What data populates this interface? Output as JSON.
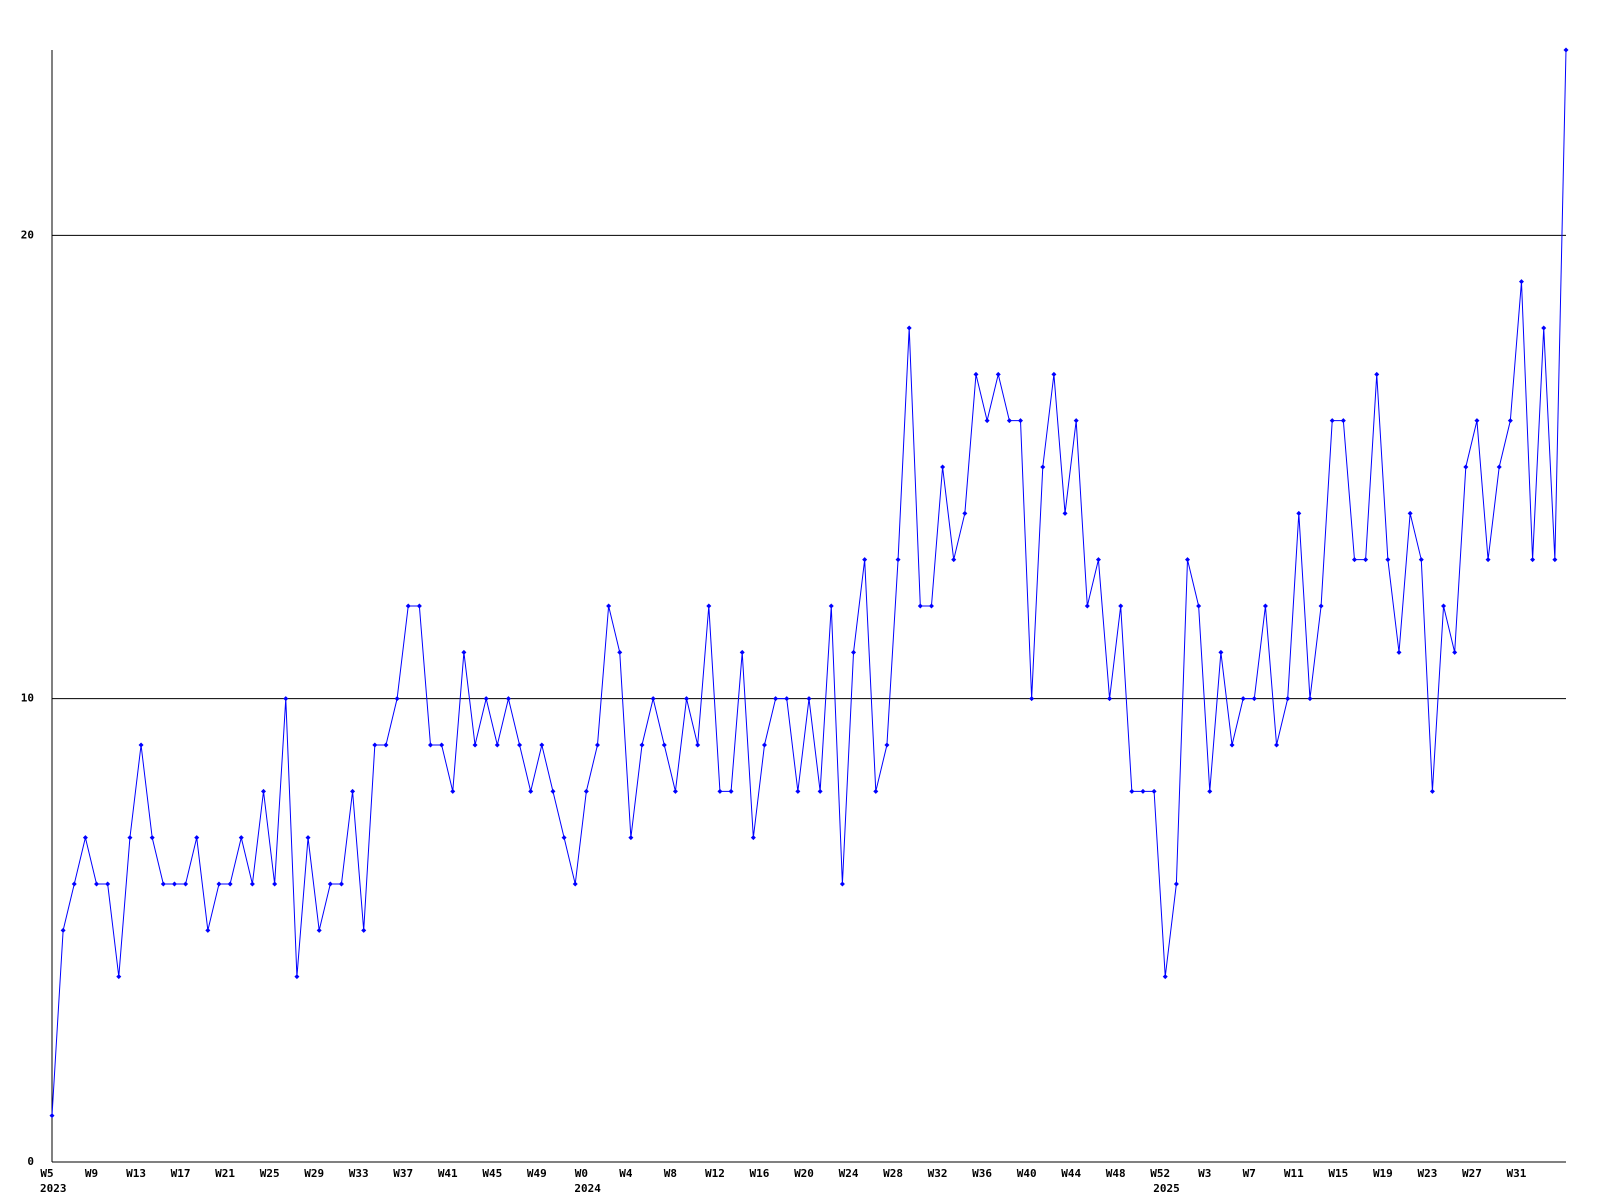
{
  "chart_data": {
    "type": "line",
    "categories": [
      "W5",
      null,
      null,
      null,
      "W9",
      null,
      null,
      null,
      "W13",
      null,
      null,
      null,
      "W17",
      null,
      null,
      null,
      "W21",
      null,
      null,
      null,
      "W25",
      null,
      null,
      null,
      "W29",
      null,
      null,
      null,
      "W33",
      null,
      null,
      null,
      "W37",
      null,
      null,
      null,
      "W41",
      null,
      null,
      null,
      "W45",
      null,
      null,
      null,
      "W49",
      null,
      null,
      null,
      "W0",
      null,
      null,
      null,
      "W4",
      null,
      null,
      null,
      "W8",
      null,
      null,
      null,
      "W12",
      null,
      null,
      null,
      "W16",
      null,
      null,
      null,
      "W20",
      null,
      null,
      null,
      "W24",
      null,
      null,
      null,
      "W28",
      null,
      null,
      null,
      "W32",
      null,
      null,
      null,
      "W36",
      null,
      null,
      null,
      "W40",
      null,
      null,
      null,
      "W44",
      null,
      null,
      null,
      "W48",
      null,
      null,
      null,
      "W52",
      null,
      null,
      null,
      "W3",
      null,
      null,
      null,
      "W7",
      null,
      null,
      null,
      "W11",
      null,
      null,
      null,
      "W15",
      null,
      null,
      null,
      "W19",
      null,
      null,
      null,
      "W23",
      null,
      null,
      null,
      "W27",
      null,
      null,
      null,
      "W31",
      null,
      null,
      null,
      null
    ],
    "category_years": [
      "2023",
      null,
      null,
      null,
      null,
      null,
      null,
      null,
      null,
      null,
      null,
      null,
      null,
      null,
      null,
      null,
      null,
      null,
      null,
      null,
      null,
      null,
      null,
      null,
      null,
      null,
      null,
      null,
      null,
      null,
      null,
      null,
      null,
      null,
      null,
      null,
      null,
      null,
      null,
      null,
      null,
      null,
      null,
      null,
      null,
      null,
      null,
      null,
      "2024",
      null,
      null,
      null,
      null,
      null,
      null,
      null,
      null,
      null,
      null,
      null,
      null,
      null,
      null,
      null,
      null,
      null,
      null,
      null,
      null,
      null,
      null,
      null,
      null,
      null,
      null,
      null,
      null,
      null,
      null,
      null,
      null,
      null,
      null,
      null,
      null,
      null,
      null,
      null,
      null,
      null,
      null,
      null,
      null,
      null,
      null,
      null,
      null,
      null,
      null,
      null,
      "2025",
      null,
      null,
      null,
      null,
      null,
      null,
      null,
      null,
      null,
      null,
      null,
      null,
      null,
      null,
      null,
      null,
      null,
      null,
      null,
      null,
      null,
      null,
      null,
      null,
      null,
      null,
      null,
      null,
      null,
      null,
      null,
      null,
      null,
      null,
      null
    ],
    "values": [
      1,
      5,
      6,
      7,
      6,
      6,
      4,
      7,
      9,
      7,
      6,
      6,
      6,
      7,
      5,
      6,
      6,
      7,
      6,
      8,
      6,
      10,
      4,
      7,
      5,
      6,
      6,
      8,
      5,
      9,
      9,
      10,
      12,
      12,
      9,
      9,
      8,
      11,
      9,
      10,
      9,
      10,
      9,
      8,
      9,
      8,
      7,
      6,
      8,
      9,
      12,
      11,
      7,
      9,
      10,
      9,
      8,
      10,
      9,
      12,
      8,
      8,
      11,
      7,
      9,
      10,
      10,
      8,
      10,
      8,
      12,
      6,
      11,
      13,
      8,
      9,
      13,
      18,
      12,
      12,
      15,
      13,
      14,
      17,
      16,
      17,
      16,
      16,
      10,
      15,
      17,
      14,
      16,
      12,
      13,
      10,
      12,
      8,
      8,
      8,
      4,
      6,
      13,
      12,
      8,
      11,
      9,
      10,
      10,
      12,
      9,
      10,
      14,
      10,
      12,
      16,
      16,
      13,
      13,
      17,
      13,
      11,
      14,
      13,
      8,
      12,
      11,
      15,
      16,
      13,
      15,
      16,
      19,
      13,
      18,
      13,
      24
    ],
    "color": "#0000ff",
    "ylim": [
      0,
      24
    ],
    "yticks": [
      0,
      10,
      20
    ],
    "grid": true
  }
}
